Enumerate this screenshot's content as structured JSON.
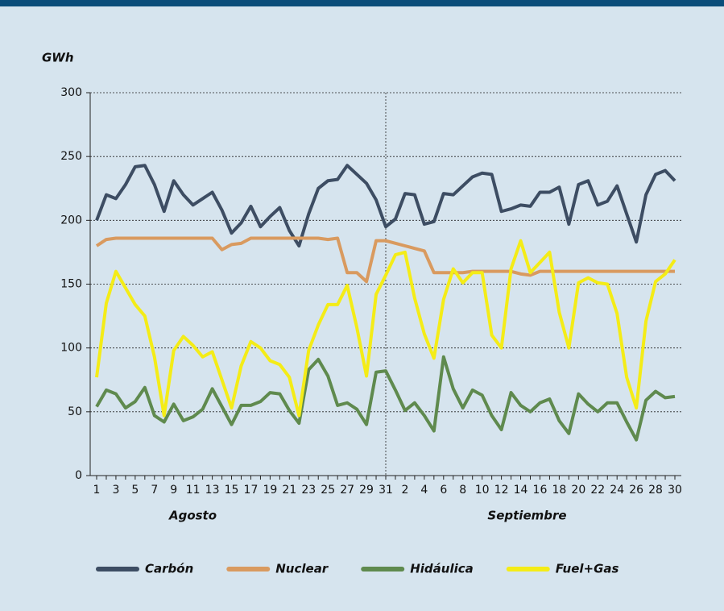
{
  "chart_data": {
    "type": "line",
    "y_label": "GWh",
    "x_group_labels": [
      "Agosto",
      "Septiembre"
    ],
    "categories": [
      "1",
      null,
      "3",
      null,
      "5",
      null,
      "7",
      null,
      "9",
      null,
      "11",
      null,
      "13",
      null,
      "15",
      null,
      "17",
      null,
      "19",
      null,
      "21",
      null,
      "23",
      null,
      "25",
      null,
      "27",
      null,
      "29",
      null,
      "31",
      null,
      "2",
      null,
      "4",
      null,
      "6",
      null,
      "8",
      null,
      "10",
      null,
      "12",
      null,
      "14",
      null,
      "16",
      null,
      "18",
      null,
      "20",
      null,
      "22",
      null,
      "24",
      null,
      "26",
      null,
      "28",
      null,
      "30"
    ],
    "series": [
      {
        "name": "Carbón",
        "color": "#3d4d63",
        "values": [
          200,
          220,
          217,
          228,
          242,
          243,
          228,
          207,
          231,
          220,
          212,
          217,
          222,
          208,
          190,
          198,
          211,
          195,
          203,
          210,
          192,
          180,
          205,
          225,
          231,
          232,
          243,
          236,
          229,
          216,
          195,
          201,
          221,
          220,
          197,
          199,
          221,
          220,
          227,
          234,
          237,
          236,
          207,
          209,
          212,
          211,
          222,
          222,
          226,
          197,
          228,
          231,
          212,
          215,
          227,
          205,
          183,
          220,
          236,
          239,
          231
        ]
      },
      {
        "name": "Nuclear",
        "color": "#d99a5f",
        "values": [
          180,
          185,
          186,
          186,
          186,
          186,
          186,
          186,
          186,
          186,
          186,
          186,
          186,
          177,
          181,
          182,
          186,
          186,
          186,
          186,
          186,
          186,
          186,
          186,
          185,
          186,
          159,
          159,
          152,
          184,
          184,
          182,
          180,
          178,
          176,
          159,
          159,
          159,
          159,
          160,
          160,
          160,
          160,
          160,
          158,
          157,
          160,
          160,
          160,
          160,
          160,
          160,
          160,
          160,
          160,
          160,
          160,
          160,
          160,
          160,
          160
        ]
      },
      {
        "name": "Hidáulica",
        "color": "#5f8a4e",
        "values": [
          54,
          67,
          64,
          53,
          58,
          69,
          47,
          42,
          56,
          43,
          46,
          52,
          68,
          54,
          40,
          55,
          55,
          58,
          65,
          64,
          51,
          41,
          83,
          91,
          78,
          55,
          57,
          52,
          40,
          81,
          82,
          67,
          51,
          57,
          47,
          35,
          93,
          68,
          53,
          67,
          63,
          47,
          36,
          65,
          55,
          50,
          57,
          60,
          43,
          33,
          64,
          56,
          50,
          57,
          57,
          42,
          28,
          59,
          66,
          61,
          62
        ]
      },
      {
        "name": "Fuel+Gas",
        "color": "#f4ec17",
        "values": [
          77,
          135,
          160,
          147,
          134,
          125,
          93,
          47,
          98,
          109,
          102,
          93,
          97,
          75,
          53,
          86,
          105,
          100,
          90,
          87,
          77,
          47,
          98,
          118,
          134,
          134,
          149,
          116,
          78,
          142,
          157,
          173,
          175,
          139,
          111,
          92,
          138,
          162,
          151,
          159,
          159,
          110,
          100,
          162,
          184,
          159,
          167,
          175,
          128,
          100,
          151,
          155,
          151,
          150,
          127,
          77,
          53,
          121,
          152,
          158,
          169
        ]
      }
    ],
    "ylim": [
      0,
      300
    ],
    "yticks": [
      0,
      50,
      100,
      150,
      200,
      250,
      300
    ],
    "grid": true
  }
}
